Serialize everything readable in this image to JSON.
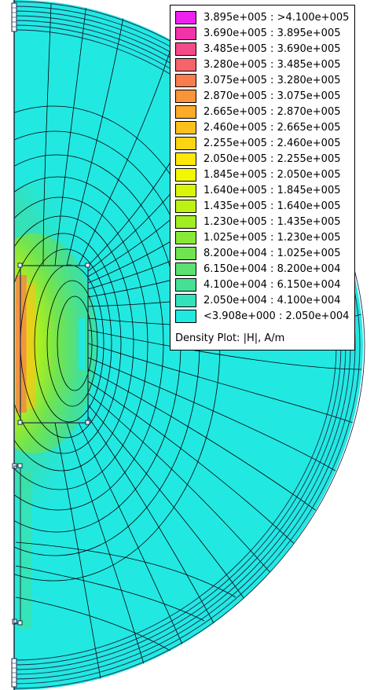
{
  "legend": {
    "title": "Density Plot: |H|, A/m",
    "entries": [
      {
        "label": "3.895e+005 : >4.100e+005",
        "color": "#ee22ee"
      },
      {
        "label": "3.690e+005 : 3.895e+005",
        "color": "#f233aa"
      },
      {
        "label": "3.485e+005 : 3.690e+005",
        "color": "#f44a88"
      },
      {
        "label": "3.280e+005 : 3.485e+005",
        "color": "#f6636a"
      },
      {
        "label": "3.075e+005 : 3.280e+005",
        "color": "#f87c4e"
      },
      {
        "label": "2.870e+005 : 3.075e+005",
        "color": "#f99438"
      },
      {
        "label": "2.665e+005 : 2.870e+005",
        "color": "#fbab28"
      },
      {
        "label": "2.460e+005 : 2.665e+005",
        "color": "#fcc01c"
      },
      {
        "label": "2.255e+005 : 2.460e+005",
        "color": "#fdd412"
      },
      {
        "label": "2.050e+005 : 2.255e+005",
        "color": "#fee80a"
      },
      {
        "label": "1.845e+005 : 2.050e+005",
        "color": "#f2f704"
      },
      {
        "label": "1.640e+005 : 1.845e+005",
        "color": "#d8f50a"
      },
      {
        "label": "1.435e+005 : 1.640e+005",
        "color": "#bdf114"
      },
      {
        "label": "1.230e+005 : 1.435e+005",
        "color": "#a2ec22"
      },
      {
        "label": "1.025e+005 : 1.230e+005",
        "color": "#88e836"
      },
      {
        "label": "8.200e+004 : 1.025e+005",
        "color": "#70e450"
      },
      {
        "label": "6.150e+004 : 8.200e+004",
        "color": "#5ae170"
      },
      {
        "label": "4.100e+004 : 6.150e+004",
        "color": "#45e095"
      },
      {
        "label": "2.050e+004 : 4.100e+004",
        "color": "#33e1bb"
      },
      {
        "label": "<3.908e+000 : 2.050e+004",
        "color": "#22e8e2"
      }
    ]
  },
  "colors": {
    "background_field": "#22e8e2",
    "contour": "#000000",
    "geometry": "#1a2a4a"
  }
}
